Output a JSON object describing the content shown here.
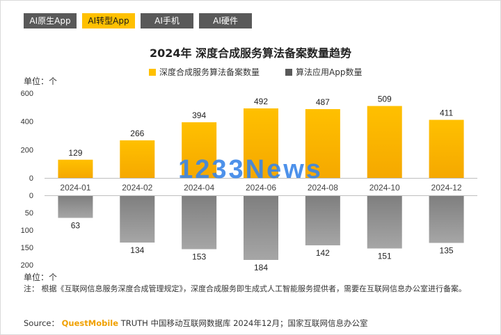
{
  "tabs": [
    {
      "label": "AI原生App",
      "active": false
    },
    {
      "label": "AI转型App",
      "active": true
    },
    {
      "label": "AI手机",
      "active": false
    },
    {
      "label": "AI硬件",
      "active": false
    }
  ],
  "watermark": "1233News",
  "unit_label": "单位：个",
  "note": "注：  根据《互联网信息服务深度合成管理规定》，深度合成服务即生成式人工智能服务提供者，需要在互联网信息办公室进行备案。",
  "source": {
    "prefix": "Source：",
    "brand": "QuestMobile",
    "text": "TRUTH 中国移动互联网数据库 2024年12月；国家互联网信息办公室"
  },
  "colors": {
    "gold": "#ffc000",
    "gold_dark": "#f5a800",
    "gray": "#7f7f7f",
    "gray_light": "#a6a6a6"
  },
  "chart_data": {
    "type": "bar",
    "title": "2024年 深度合成服务算法备案数量趋势",
    "categories": [
      "2024-01",
      "2024-02",
      "2024-04",
      "2024-06",
      "2024-08",
      "2024-10",
      "2024-12"
    ],
    "series": [
      {
        "name": "深度合成服务算法备案数量",
        "values": [
          129,
          266,
          394,
          492,
          487,
          509,
          411
        ],
        "color": "#ffc000",
        "yticks": [
          "600",
          "400",
          "200",
          "0"
        ],
        "ylim": [
          0,
          600
        ]
      },
      {
        "name": "算法应用App数量",
        "values": [
          63,
          134,
          153,
          184,
          142,
          151,
          135
        ],
        "color": "#7f7f7f",
        "yticks": [
          "0",
          "50",
          "100",
          "150",
          "200"
        ],
        "ylim": [
          0,
          200
        ],
        "direction": "down"
      }
    ],
    "ylabel": "单位：个",
    "legend": "top",
    "grid": false
  }
}
